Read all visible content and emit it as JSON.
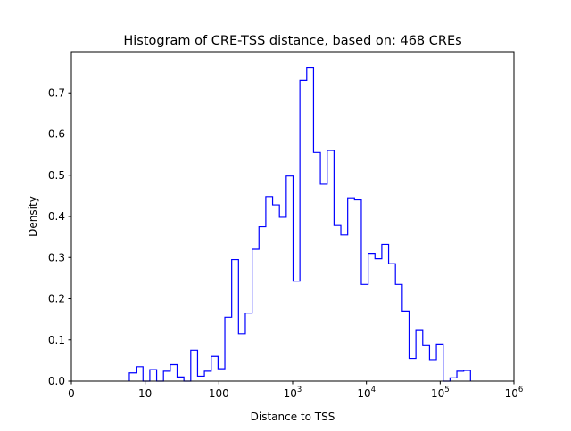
{
  "chart_data": {
    "type": "bar",
    "histtype": "step",
    "title": "Histogram of CRE-TSS distance, based on: 468 CREs",
    "xlabel": "Distance to TSS",
    "ylabel": "Density",
    "xscale": "log",
    "xlim_log10": [
      0,
      6
    ],
    "ylim": [
      0,
      0.8
    ],
    "x_ticks": [
      {
        "base": "0",
        "exp": ""
      },
      {
        "base": "10",
        "exp": ""
      },
      {
        "base": "100",
        "exp": ""
      },
      {
        "base": "10",
        "exp": "3"
      },
      {
        "base": "10",
        "exp": "4"
      },
      {
        "base": "10",
        "exp": "5"
      },
      {
        "base": "10",
        "exp": "6"
      }
    ],
    "y_ticks": [
      "0.0",
      "0.1",
      "0.2",
      "0.3",
      "0.4",
      "0.5",
      "0.6",
      "0.7"
    ],
    "bin_start_log10": 0.786,
    "bin_width_log10": 0.0925,
    "values": [
      0.02,
      0.035,
      0,
      0.028,
      0,
      0.024,
      0.04,
      0.01,
      0,
      0.075,
      0.012,
      0.024,
      0.06,
      0.03,
      0.155,
      0.295,
      0.115,
      0.165,
      0.32,
      0.375,
      0.448,
      0.428,
      0.398,
      0.498,
      0.243,
      0.73,
      0.762,
      0.555,
      0.478,
      0.56,
      0.378,
      0.355,
      0.445,
      0.44,
      0.235,
      0.31,
      0.297,
      0.332,
      0.285,
      0.235,
      0.17,
      0.055,
      0.123,
      0.088,
      0.052,
      0.09,
      0,
      0.008,
      0.024,
      0.026
    ],
    "color": "#0000ff",
    "grid": false
  }
}
